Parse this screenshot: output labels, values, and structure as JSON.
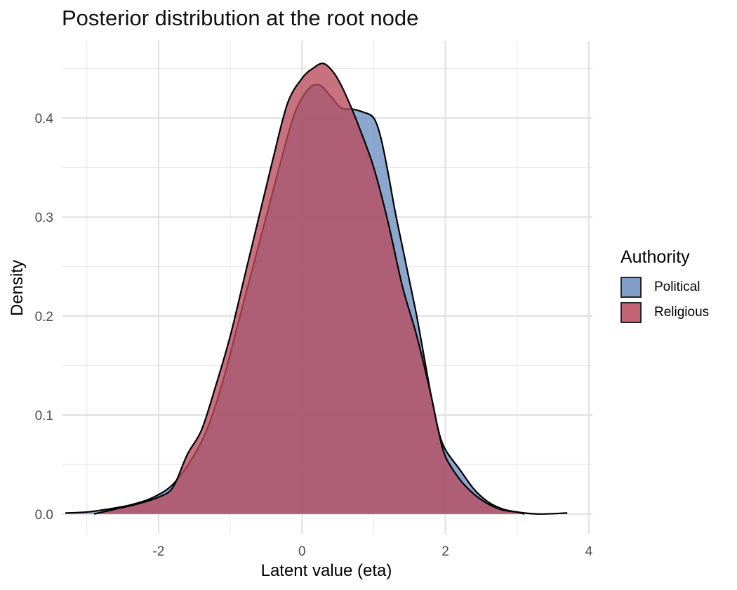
{
  "chart_data": {
    "type": "area",
    "title": "Posterior distribution at the root node",
    "xlabel": "Latent value (eta)",
    "ylabel": "Density",
    "xlim": [
      -3.35,
      4.05
    ],
    "ylim": [
      -0.02,
      0.478
    ],
    "x_ticks": [
      -2,
      0,
      2,
      4
    ],
    "y_ticks": [
      0.0,
      0.1,
      0.2,
      0.3,
      0.4
    ],
    "x_tick_labels": [
      "-2",
      "0",
      "2",
      "4"
    ],
    "y_tick_labels": [
      "0.0",
      "0.1",
      "0.2",
      "0.3",
      "0.4"
    ],
    "grid": true,
    "legend_position": "right",
    "legend_title": "Authority",
    "series": [
      {
        "name": "Political",
        "color": "#6c8ebf",
        "points": [
          [
            -3.3,
            0.001
          ],
          [
            -3.0,
            0.002
          ],
          [
            -2.7,
            0.005
          ],
          [
            -2.4,
            0.009
          ],
          [
            -2.1,
            0.016
          ],
          [
            -1.8,
            0.03
          ],
          [
            -1.5,
            0.06
          ],
          [
            -1.3,
            0.09
          ],
          [
            -1.1,
            0.135
          ],
          [
            -0.9,
            0.19
          ],
          [
            -0.7,
            0.245
          ],
          [
            -0.5,
            0.3
          ],
          [
            -0.3,
            0.355
          ],
          [
            -0.1,
            0.405
          ],
          [
            0.1,
            0.43
          ],
          [
            0.25,
            0.433
          ],
          [
            0.4,
            0.422
          ],
          [
            0.55,
            0.41
          ],
          [
            0.7,
            0.409
          ],
          [
            0.85,
            0.406
          ],
          [
            1.0,
            0.4
          ],
          [
            1.1,
            0.38
          ],
          [
            1.2,
            0.345
          ],
          [
            1.3,
            0.305
          ],
          [
            1.4,
            0.27
          ],
          [
            1.5,
            0.235
          ],
          [
            1.6,
            0.2
          ],
          [
            1.7,
            0.16
          ],
          [
            1.8,
            0.12
          ],
          [
            1.9,
            0.085
          ],
          [
            2.0,
            0.065
          ],
          [
            2.2,
            0.045
          ],
          [
            2.4,
            0.025
          ],
          [
            2.6,
            0.012
          ],
          [
            2.8,
            0.005
          ],
          [
            3.0,
            0.002
          ],
          [
            3.3,
            0.0
          ],
          [
            3.7,
            0.001
          ]
        ]
      },
      {
        "name": "Religious",
        "color": "#b84a5c",
        "points": [
          [
            -2.9,
            0.0
          ],
          [
            -2.6,
            0.005
          ],
          [
            -2.3,
            0.01
          ],
          [
            -2.0,
            0.017
          ],
          [
            -1.8,
            0.027
          ],
          [
            -1.6,
            0.06
          ],
          [
            -1.4,
            0.085
          ],
          [
            -1.2,
            0.13
          ],
          [
            -1.0,
            0.18
          ],
          [
            -0.8,
            0.24
          ],
          [
            -0.6,
            0.3
          ],
          [
            -0.4,
            0.36
          ],
          [
            -0.2,
            0.415
          ],
          [
            0.0,
            0.44
          ],
          [
            0.15,
            0.45
          ],
          [
            0.3,
            0.455
          ],
          [
            0.45,
            0.445
          ],
          [
            0.6,
            0.425
          ],
          [
            0.8,
            0.39
          ],
          [
            1.0,
            0.35
          ],
          [
            1.2,
            0.295
          ],
          [
            1.4,
            0.23
          ],
          [
            1.6,
            0.18
          ],
          [
            1.8,
            0.12
          ],
          [
            1.9,
            0.085
          ],
          [
            2.0,
            0.058
          ],
          [
            2.2,
            0.035
          ],
          [
            2.4,
            0.02
          ],
          [
            2.6,
            0.01
          ],
          [
            2.8,
            0.004
          ],
          [
            3.0,
            0.002
          ],
          [
            3.1,
            0.0
          ]
        ]
      }
    ]
  }
}
